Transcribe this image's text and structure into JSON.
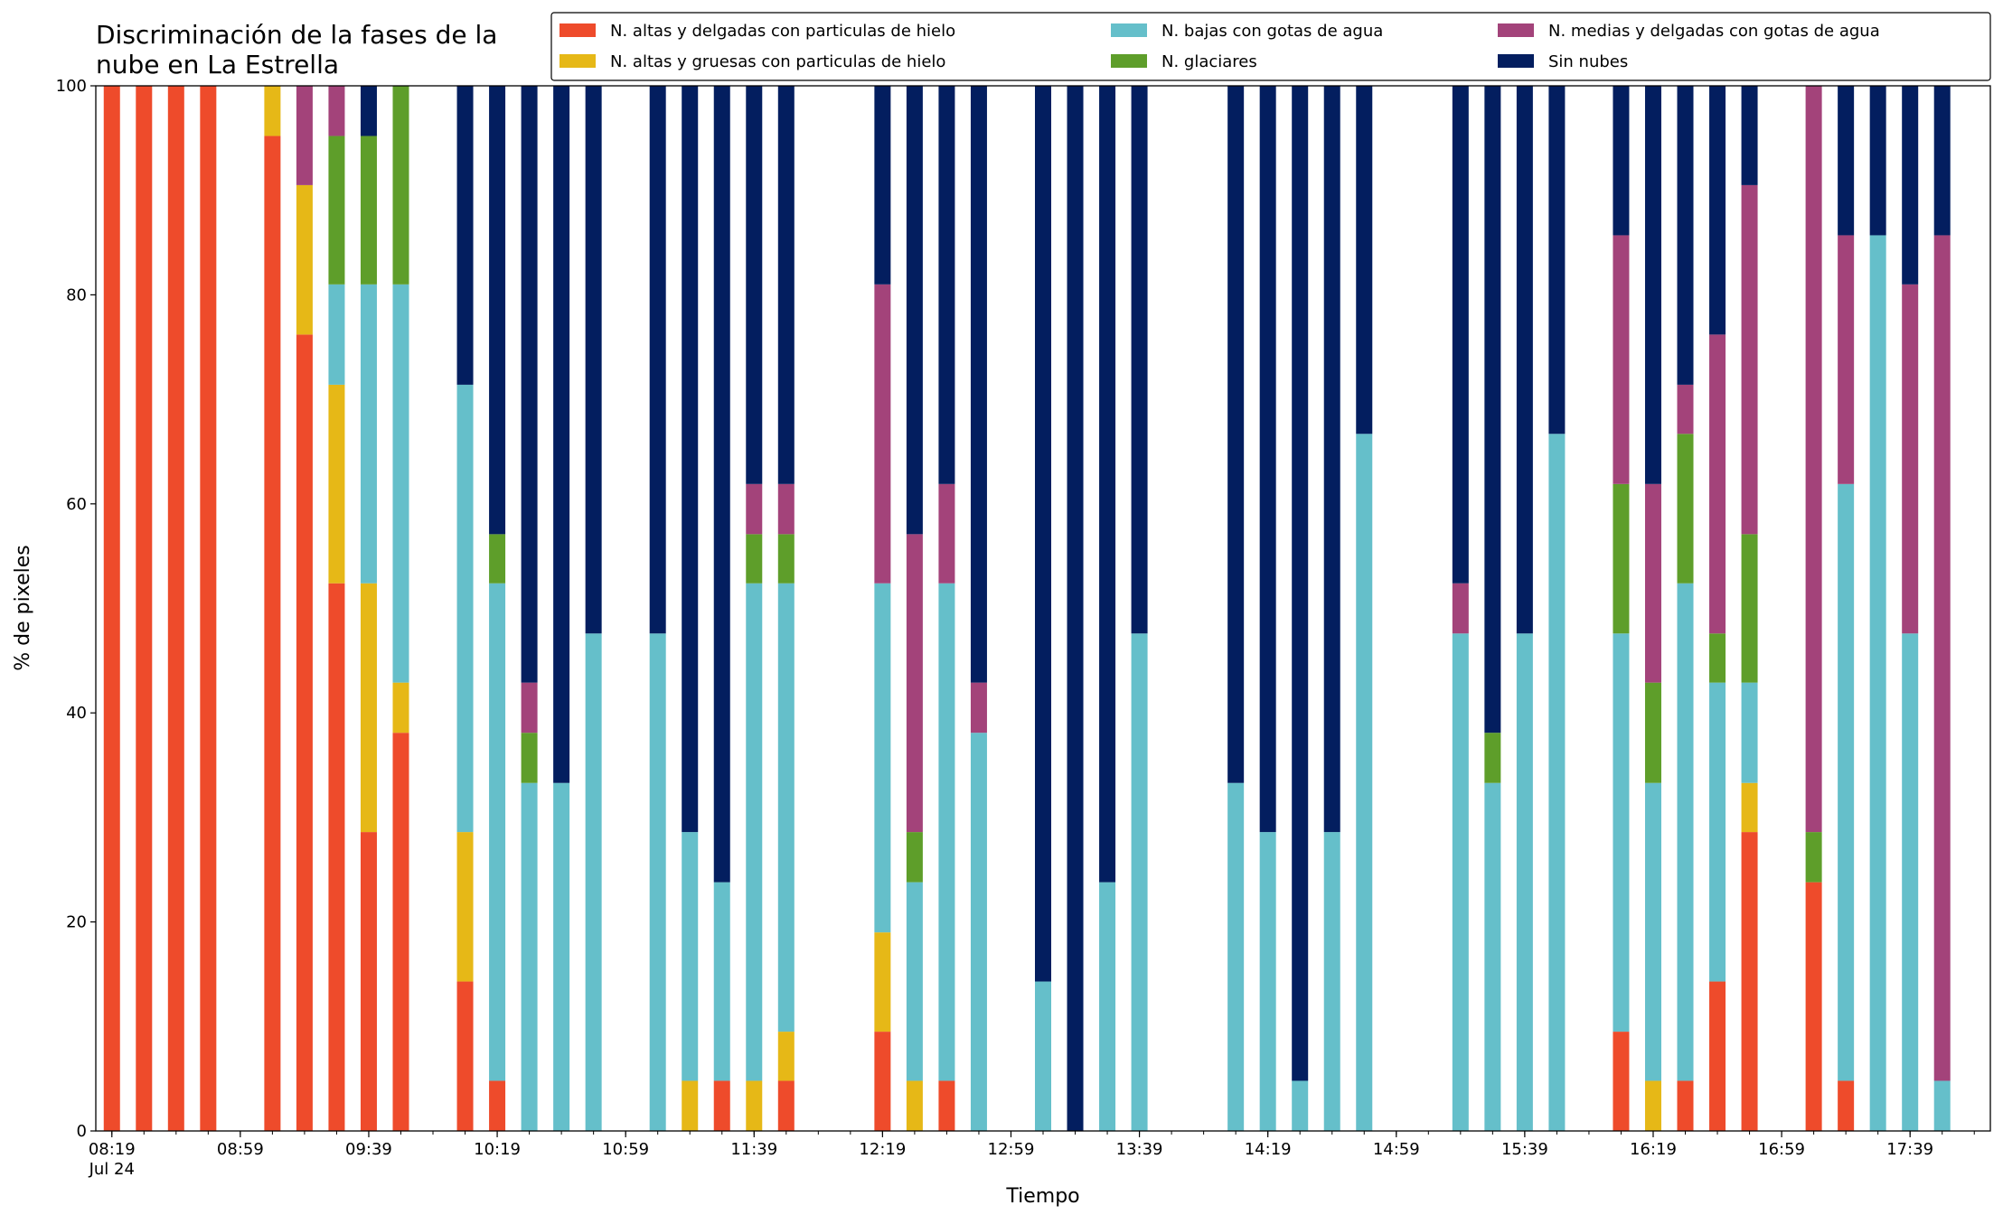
{
  "chart_data": {
    "type": "stacked_bar",
    "title": "Discriminación de la fases de la\nnube en La Estrella",
    "x_label": "Tiempo",
    "y_label": "% de pixeles",
    "legend": "upper right",
    "grid": false,
    "xlim": [
      "08:14",
      "18:04"
    ],
    "xticks": [
      {
        "value": "08:19",
        "label": "08:19\nJul 24"
      },
      "08:59",
      "09:39",
      "10:19",
      "10:59",
      "11:39",
      "12:19",
      "12:59",
      "13:39",
      "14:19",
      "14:59",
      "15:39",
      "16:19",
      "16:59",
      "17:39"
    ],
    "ylim": [
      0,
      100
    ],
    "yticks": [
      0,
      20,
      40,
      60,
      80,
      100
    ],
    "categories": [
      "08:19",
      "08:29",
      "08:39",
      "08:49",
      "09:09",
      "09:19",
      "09:29",
      "09:39",
      "09:49",
      "10:09",
      "10:19",
      "10:29",
      "10:39",
      "10:49",
      "11:09",
      "11:19",
      "11:29",
      "11:39",
      "11:49",
      "12:19",
      "12:29",
      "12:39",
      "12:49",
      "13:09",
      "13:19",
      "13:29",
      "13:39",
      "14:09",
      "14:19",
      "14:29",
      "14:39",
      "14:49",
      "15:19",
      "15:29",
      "15:39",
      "15:49",
      "16:09",
      "16:19",
      "16:29",
      "16:39",
      "16:49",
      "17:09",
      "17:19",
      "17:29",
      "17:39",
      "17:49"
    ],
    "series": [
      {
        "name": "N. altas y delgadas con particulas de hielo",
        "color": "#ee4b2b",
        "values": [
          100,
          100,
          100,
          100,
          95.2,
          76.2,
          52.4,
          28.6,
          38.1,
          14.3,
          4.8,
          0,
          0,
          0,
          0,
          0,
          4.8,
          0,
          4.8,
          9.5,
          0,
          4.8,
          0,
          0,
          0,
          0,
          0,
          0,
          0,
          0,
          0,
          0,
          0,
          0,
          0,
          0,
          9.5,
          0,
          4.8,
          14.3,
          28.6,
          23.8,
          4.8,
          0,
          0,
          0
        ]
      },
      {
        "name": "N. altas y gruesas con particulas de hielo",
        "color": "#e6b817",
        "values": [
          0,
          0,
          0,
          0,
          4.8,
          14.3,
          19,
          23.8,
          4.8,
          14.3,
          0,
          0,
          0,
          0,
          0,
          4.8,
          0,
          4.8,
          4.7,
          9.5,
          4.8,
          0,
          0,
          0,
          0,
          0,
          0,
          0,
          0,
          0,
          0,
          0,
          0,
          0,
          0,
          0,
          0,
          4.8,
          0,
          0,
          4.7,
          0,
          0,
          0,
          0,
          0
        ]
      },
      {
        "name": "N. bajas con gotas de agua",
        "color": "#65bfca",
        "values": [
          0,
          0,
          0,
          0,
          0,
          0,
          9.6,
          28.6,
          38.1,
          42.8,
          47.6,
          33.3,
          33.3,
          47.6,
          47.6,
          23.8,
          19,
          47.6,
          42.9,
          33.4,
          19,
          47.6,
          38.1,
          14.3,
          0,
          23.8,
          47.6,
          33.3,
          28.6,
          4.8,
          28.6,
          66.7,
          47.6,
          33.3,
          47.6,
          66.7,
          38.1,
          28.5,
          47.6,
          28.6,
          9.6,
          0,
          57.1,
          85.7,
          47.6,
          4.8
        ]
      },
      {
        "name": "N. glaciares",
        "color": "#5e9e2a",
        "values": [
          0,
          0,
          0,
          0,
          0,
          0,
          14.2,
          14.2,
          19,
          0,
          4.7,
          4.8,
          0,
          0,
          0,
          0,
          0,
          4.7,
          4.7,
          0,
          4.8,
          0,
          0,
          0,
          0,
          0,
          0,
          0,
          0,
          0,
          0,
          0,
          0,
          4.8,
          0,
          0,
          14.3,
          9.6,
          14.3,
          4.7,
          14.2,
          4.8,
          0,
          0,
          0,
          0
        ]
      },
      {
        "name": "N. medias y delgadas con gotas de agua",
        "color": "#a3437a",
        "values": [
          0,
          0,
          0,
          0,
          0,
          9.5,
          4.8,
          0,
          0,
          0,
          0,
          4.8,
          0,
          0,
          0,
          0,
          0,
          4.8,
          4.8,
          28.6,
          28.5,
          9.5,
          4.8,
          0,
          0,
          0,
          0,
          0,
          0,
          0,
          0,
          0,
          4.8,
          0,
          0,
          0,
          23.8,
          19,
          4.7,
          28.6,
          33.4,
          71.4,
          23.8,
          0,
          33.4,
          80.9
        ]
      },
      {
        "name": "Sin nubes",
        "color": "#031e5f",
        "values": [
          0,
          0,
          0,
          0,
          0,
          0,
          0,
          4.8,
          0,
          28.6,
          42.9,
          57.1,
          66.7,
          52.4,
          52.4,
          71.4,
          76.2,
          38.1,
          38.1,
          19,
          42.9,
          38.1,
          57.1,
          85.7,
          100,
          76.2,
          52.4,
          66.7,
          71.4,
          95.2,
          71.4,
          33.3,
          47.6,
          61.9,
          52.4,
          33.3,
          14.3,
          38.1,
          28.6,
          23.8,
          9.5,
          0,
          14.3,
          14.3,
          19,
          14.3
        ]
      }
    ]
  }
}
